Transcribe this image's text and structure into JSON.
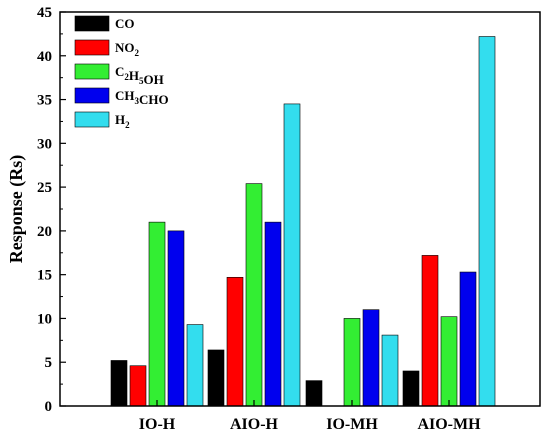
{
  "chart_data": {
    "type": "bar",
    "title": "",
    "xlabel": "",
    "ylabel": "Response (Rs)",
    "ylim": [
      0,
      45
    ],
    "yticks": [
      0,
      5,
      10,
      15,
      20,
      25,
      30,
      35,
      40,
      45
    ],
    "grid": false,
    "legend_position": "top-left",
    "categories": [
      "IO-H",
      "AIO-H",
      "IO-MH",
      "AIO-MH"
    ],
    "series": [
      {
        "name": "CO",
        "name_parts": [
          [
            "CO",
            ""
          ]
        ],
        "color": "#000000",
        "values": [
          5.2,
          6.4,
          2.9,
          4.0
        ]
      },
      {
        "name": "NO2",
        "name_parts": [
          [
            "NO",
            ""
          ],
          [
            "2",
            "sub"
          ]
        ],
        "color": "#ff0000",
        "values": [
          4.6,
          14.7,
          0,
          17.2
        ]
      },
      {
        "name": "C2H5OH",
        "name_parts": [
          [
            "C",
            ""
          ],
          [
            "2",
            "sub"
          ],
          [
            "H",
            ""
          ],
          [
            "5",
            "sub"
          ],
          [
            "OH",
            ""
          ]
        ],
        "color": "#33ee33",
        "values": [
          21.0,
          25.4,
          10.0,
          10.2
        ]
      },
      {
        "name": "CH3CHO",
        "name_parts": [
          [
            "CH",
            ""
          ],
          [
            "3",
            "sub"
          ],
          [
            "CHO",
            ""
          ]
        ],
        "color": "#0000ee",
        "values": [
          20.0,
          21.0,
          11.0,
          15.3
        ]
      },
      {
        "name": "H2",
        "name_parts": [
          [
            "H",
            ""
          ],
          [
            "2",
            "sub"
          ]
        ],
        "color": "#33ddee",
        "values": [
          9.3,
          34.5,
          8.1,
          42.2
        ]
      }
    ]
  }
}
